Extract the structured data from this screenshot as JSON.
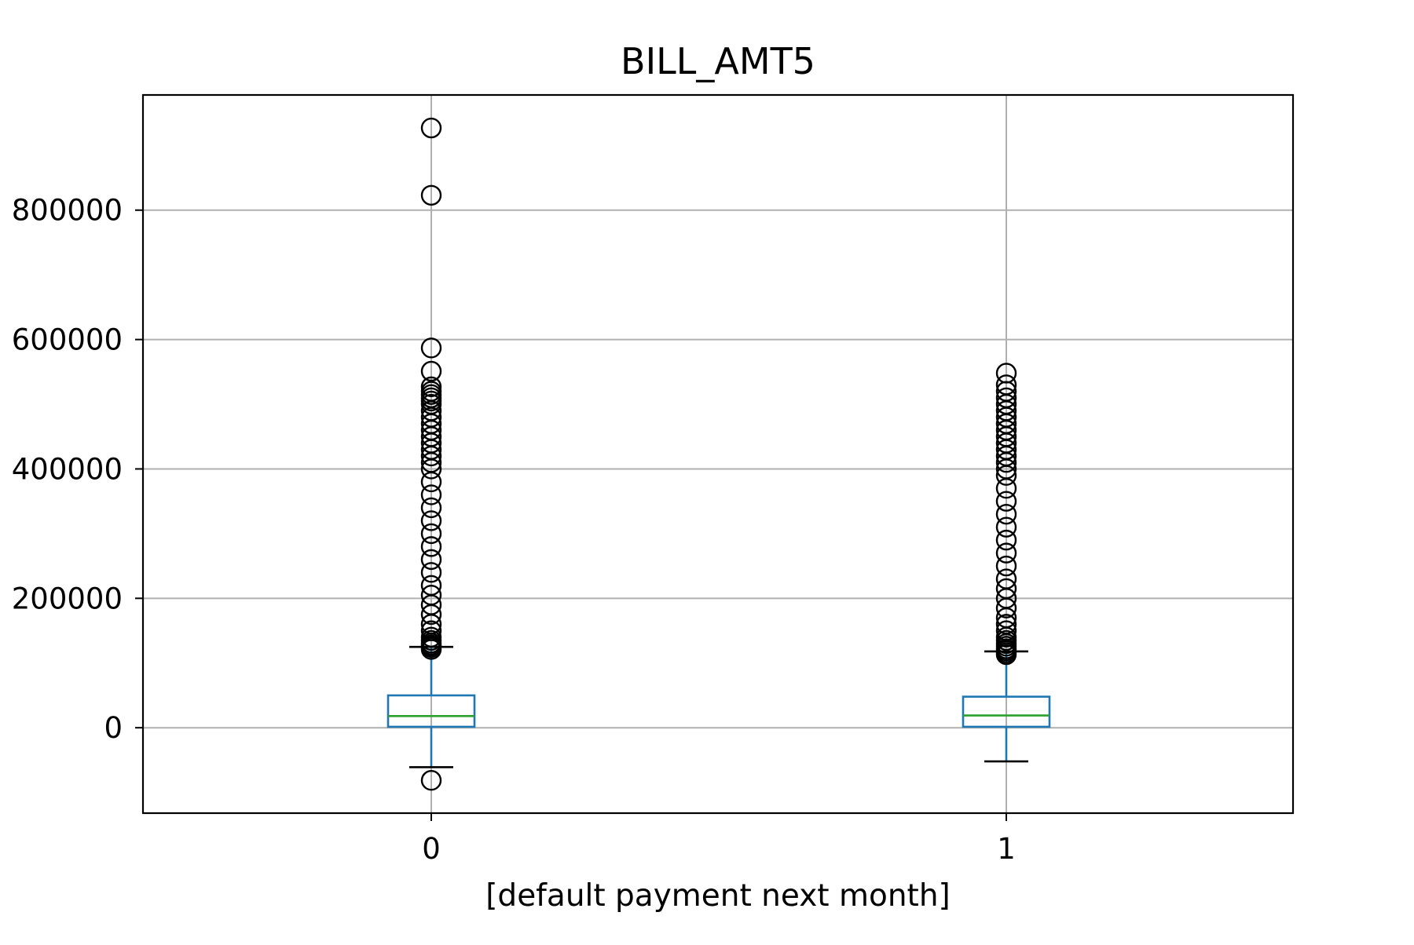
{
  "chart_data": {
    "type": "box",
    "title": "BILL_AMT5",
    "xlabel": "[default payment next month]",
    "ylabel": "",
    "categories": [
      "0",
      "1"
    ],
    "y_ticks": [
      0,
      200000,
      400000,
      600000,
      800000
    ],
    "y_tick_labels": [
      "0",
      "200000",
      "400000",
      "600000",
      "800000"
    ],
    "ylim": [
      -132000,
      978000
    ],
    "grid": true,
    "boxes": [
      {
        "category": "0",
        "whisker_low": -61000,
        "q1": 1500,
        "median": 18000,
        "q3": 50000,
        "whisker_high": 125000,
        "outliers": [
          -81300,
          121000,
          124000,
          126000,
          128000,
          131000,
          135000,
          140000,
          150000,
          160000,
          175000,
          190000,
          205000,
          220000,
          240000,
          260000,
          280000,
          300000,
          320000,
          340000,
          360000,
          380000,
          400000,
          410000,
          420000,
          430000,
          440000,
          450000,
          460000,
          470000,
          480000,
          490000,
          500000,
          505000,
          510000,
          515000,
          520000,
          527000,
          551000,
          587000,
          823000,
          927000
        ]
      },
      {
        "category": "1",
        "whisker_low": -52000,
        "q1": 1500,
        "median": 19000,
        "q3": 48000,
        "whisker_high": 118000,
        "outliers": [
          113000,
          116000,
          119000,
          122000,
          126000,
          130000,
          135000,
          140000,
          150000,
          160000,
          170000,
          185000,
          200000,
          215000,
          230000,
          250000,
          270000,
          290000,
          310000,
          330000,
          350000,
          370000,
          390000,
          400000,
          410000,
          420000,
          430000,
          440000,
          450000,
          460000,
          470000,
          480000,
          490000,
          500000,
          510000,
          520000,
          530000,
          548000
        ]
      }
    ]
  },
  "colors": {
    "box": "#1f77b4",
    "median": "#2ca02c",
    "whisker_cap": "#000000",
    "outlier": "#000000",
    "grid": "#b0b0b0",
    "axes": "#000000"
  }
}
